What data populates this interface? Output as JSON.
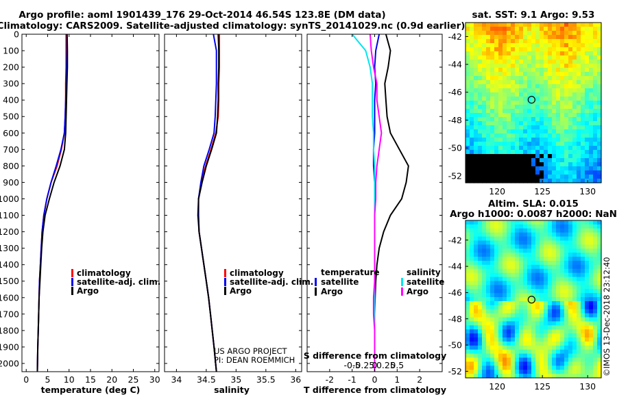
{
  "titles": {
    "line1": "Argo profile: aoml 1901439_176 29-Oct-2014 46.54S 123.8E (DM data)",
    "line2": "Climatology: CARS2009. Satellite-adjusted climatology: synTS_20141029.nc (0.9d earlier)",
    "sst_title": "sat. SST: 9.1 Argo: 9.53",
    "sla_title1": "Altim. SLA: 0.015",
    "sla_title2": "Argo h1000: 0.0087 h2000: NaN"
  },
  "colors": {
    "climatology": "#ff0000",
    "satellite": "#0000ee",
    "argo": "#000000",
    "sal_satellite": "#00e5ee",
    "sal_argo": "#ff00ff"
  },
  "depth_ticks": [
    "0",
    "100",
    "200",
    "300",
    "400",
    "500",
    "600",
    "700",
    "800",
    "900",
    "1000",
    "1100",
    "1200",
    "1300",
    "1400",
    "1500",
    "1600",
    "1700",
    "1800",
    "1900",
    "2000"
  ],
  "legend": {
    "climatology": "climatology",
    "satellite_adj": "satellite-adj. clim.",
    "argo": "Argo",
    "temperature_hdr": "temperature",
    "salinity_hdr": "salinity",
    "satellite": "satellite",
    "argo_diff": "Argo"
  },
  "notes": {
    "project": "US ARGO PROJECT",
    "pi": "PI: DEAN ROEMMICH",
    "watermark": "©IMOS 13-Dec-2018 23:12:40"
  },
  "chart_data": [
    {
      "type": "line",
      "title": "",
      "xlabel": "temperature (deg C)",
      "ylabel": "",
      "xlim": [
        -1,
        31
      ],
      "ylim": [
        2050,
        0
      ],
      "xticks": [
        0,
        5,
        10,
        15,
        20,
        25,
        30
      ],
      "xtick_labels": [
        "0",
        "5",
        "10",
        "15",
        "20",
        "25",
        "30"
      ],
      "series": [
        {
          "name": "climatology",
          "color": "#ff0000",
          "x": [
            9.3,
            9.3,
            9.3,
            9.2,
            9.2,
            9.1,
            8.9,
            8.2,
            7.2,
            5.8,
            4.8,
            4.1,
            3.7,
            3.5,
            3.3,
            3.1,
            3.0,
            2.9,
            2.8,
            2.7,
            2.6
          ],
          "y": [
            0,
            100,
            200,
            300,
            400,
            500,
            600,
            700,
            800,
            900,
            1000,
            1100,
            1200,
            1300,
            1400,
            1500,
            1600,
            1700,
            1800,
            1900,
            2050
          ]
        },
        {
          "name": "satellite-adj. clim.",
          "color": "#0000ee",
          "x": [
            9.5,
            9.5,
            9.4,
            9.3,
            9.2,
            9.1,
            8.9,
            8.1,
            7.0,
            5.8,
            4.8,
            4.1,
            3.7,
            3.5,
            3.3,
            3.1,
            3.0,
            2.9,
            2.8,
            2.7,
            2.6
          ],
          "y": [
            0,
            100,
            200,
            300,
            400,
            500,
            600,
            700,
            800,
            900,
            1000,
            1100,
            1200,
            1300,
            1400,
            1500,
            1600,
            1700,
            1800,
            1900,
            2050
          ]
        },
        {
          "name": "Argo",
          "color": "#000000",
          "x": [
            9.55,
            9.6,
            9.6,
            9.5,
            9.4,
            9.3,
            9.2,
            8.9,
            7.9,
            6.5,
            5.4,
            4.4,
            3.9,
            3.6,
            3.4,
            3.2,
            3.0,
            2.9,
            2.8,
            2.7,
            2.6
          ],
          "y": [
            0,
            100,
            200,
            300,
            400,
            500,
            600,
            700,
            800,
            900,
            1000,
            1100,
            1200,
            1300,
            1400,
            1500,
            1600,
            1700,
            1800,
            1900,
            2050
          ]
        }
      ]
    },
    {
      "type": "line",
      "title": "",
      "xlabel": "salinity",
      "ylabel": "",
      "xlim": [
        33.8,
        36.1
      ],
      "ylim": [
        2050,
        0
      ],
      "xticks": [
        34,
        34.5,
        35,
        35.5,
        36
      ],
      "xtick_labels": [
        "34",
        "34.5",
        "35",
        "35.5",
        "36"
      ],
      "series": [
        {
          "name": "climatology",
          "color": "#ff0000",
          "x": [
            34.72,
            34.72,
            34.72,
            34.71,
            34.71,
            34.7,
            34.66,
            34.58,
            34.49,
            34.42,
            34.37,
            34.37,
            34.38,
            34.42,
            34.46,
            34.5,
            34.54,
            34.57,
            34.6,
            34.63,
            34.67
          ],
          "y": [
            0,
            100,
            200,
            300,
            400,
            500,
            600,
            700,
            800,
            900,
            1000,
            1100,
            1200,
            1300,
            1400,
            1500,
            1600,
            1700,
            1800,
            1900,
            2050
          ]
        },
        {
          "name": "satellite-adj. clim.",
          "color": "#0000ee",
          "x": [
            34.62,
            34.67,
            34.67,
            34.67,
            34.66,
            34.65,
            34.63,
            34.55,
            34.46,
            34.41,
            34.37,
            34.37,
            34.38,
            34.42,
            34.46,
            34.5,
            34.54,
            34.57,
            34.6,
            34.63,
            34.67
          ],
          "y": [
            0,
            100,
            200,
            300,
            400,
            500,
            600,
            700,
            800,
            900,
            1000,
            1100,
            1200,
            1300,
            1400,
            1500,
            1600,
            1700,
            1800,
            1900,
            2050
          ]
        },
        {
          "name": "Argo",
          "color": "#000000",
          "x": [
            34.7,
            34.71,
            34.71,
            34.7,
            34.7,
            34.69,
            34.67,
            34.59,
            34.5,
            34.43,
            34.37,
            34.36,
            34.38,
            34.42,
            34.46,
            34.5,
            34.54,
            34.57,
            34.6,
            34.63,
            34.67
          ],
          "y": [
            0,
            100,
            200,
            300,
            400,
            500,
            600,
            700,
            800,
            900,
            1000,
            1100,
            1200,
            1300,
            1400,
            1500,
            1600,
            1700,
            1800,
            1900,
            2050
          ]
        }
      ]
    },
    {
      "type": "line",
      "title": "",
      "xlabel": "T difference from climatology",
      "xlabel2": "S difference from climatology",
      "ylabel": "",
      "xlim": [
        -3,
        3
      ],
      "ylim": [
        2050,
        0
      ],
      "xticks": [
        -2,
        -1,
        0,
        1,
        2
      ],
      "xtick_labels": [
        "-2",
        "-1",
        "0",
        "1",
        "2"
      ],
      "xticks_top": [
        -1,
        -0.5,
        0,
        0.5,
        1
      ],
      "xtick_labels_top": [
        "-0.5",
        "-0.25",
        "0",
        "0.25",
        "0.5"
      ],
      "series": [
        {
          "name": "temperature satellite",
          "color": "#0000ee",
          "x": [
            0.2,
            0.05,
            0,
            0.05,
            0.0,
            0.0,
            0.0,
            -0.05,
            -0.05,
            0,
            0,
            0,
            0,
            0,
            0,
            0,
            0,
            0,
            0,
            0,
            0
          ],
          "y": [
            0,
            100,
            200,
            300,
            400,
            500,
            600,
            700,
            800,
            900,
            1000,
            1100,
            1200,
            1300,
            1400,
            1500,
            1600,
            1700,
            1800,
            1900,
            2050
          ]
        },
        {
          "name": "temperature Argo",
          "color": "#000000",
          "x": [
            0.5,
            0.7,
            0.6,
            0.45,
            0.5,
            0.55,
            0.7,
            1.1,
            1.5,
            1.4,
            1.2,
            0.7,
            0.4,
            0.2,
            0.1,
            0.05,
            0.02,
            0,
            0,
            0,
            0
          ],
          "y": [
            0,
            100,
            200,
            300,
            400,
            500,
            600,
            700,
            800,
            900,
            1000,
            1100,
            1200,
            1300,
            1400,
            1500,
            1600,
            1700,
            1800,
            1900,
            2050
          ]
        },
        {
          "name": "salinity satellite",
          "color": "#00e5ee",
          "x": [
            -1.0,
            -0.4,
            -0.2,
            -0.1,
            -0.1,
            -0.1,
            -0.05,
            -0.05,
            0,
            0,
            0,
            0,
            0,
            0,
            0,
            0,
            0,
            0,
            0,
            0,
            0
          ],
          "y": [
            0,
            100,
            200,
            300,
            400,
            500,
            600,
            700,
            800,
            900,
            1000,
            1100,
            1200,
            1300,
            1400,
            1500,
            1600,
            1700,
            1800,
            1900,
            2050
          ]
        },
        {
          "name": "salinity Argo",
          "color": "#ff00ff",
          "x": [
            -0.2,
            -0.15,
            -0.05,
            0.1,
            0.1,
            0.2,
            0.3,
            0.2,
            0.1,
            0.05,
            0.05,
            0,
            0,
            0,
            0,
            0,
            -0.05,
            -0.05,
            0,
            0,
            0
          ],
          "y": [
            0,
            100,
            200,
            300,
            400,
            500,
            600,
            700,
            800,
            900,
            1000,
            1100,
            1200,
            1300,
            1400,
            1500,
            1600,
            1700,
            1800,
            1900,
            2050
          ]
        }
      ]
    },
    {
      "type": "heatmap",
      "title": "sat. SST: 9.1 Argo: 9.53",
      "xlim": [
        116.5,
        131.5
      ],
      "ylim": [
        -52.5,
        -41
      ],
      "xticks": [
        120,
        125,
        130
      ],
      "xtick_labels": [
        "120",
        "125",
        "130"
      ],
      "yticks": [
        -42,
        -44,
        -46,
        -48,
        -50,
        -52
      ],
      "ytick_labels": [
        "-42",
        "-44",
        "-46",
        "-48",
        "-50",
        "-52"
      ],
      "marker": {
        "x": 123.8,
        "y": -46.54
      }
    },
    {
      "type": "heatmap",
      "title": "Altim. SLA: 0.015",
      "subtitle": "Argo h1000: 0.0087 h2000: NaN",
      "xlim": [
        116.5,
        131.5
      ],
      "ylim": [
        -52.5,
        -40.5
      ],
      "xticks": [
        120,
        125,
        130
      ],
      "xtick_labels": [
        "120",
        "125",
        "130"
      ],
      "yticks": [
        -42,
        -44,
        -46,
        -48,
        -50,
        -52
      ],
      "ytick_labels": [
        "-42",
        "-44",
        "-46",
        "-48",
        "-50",
        "-52"
      ],
      "marker": {
        "x": 123.8,
        "y": -46.54
      }
    }
  ]
}
